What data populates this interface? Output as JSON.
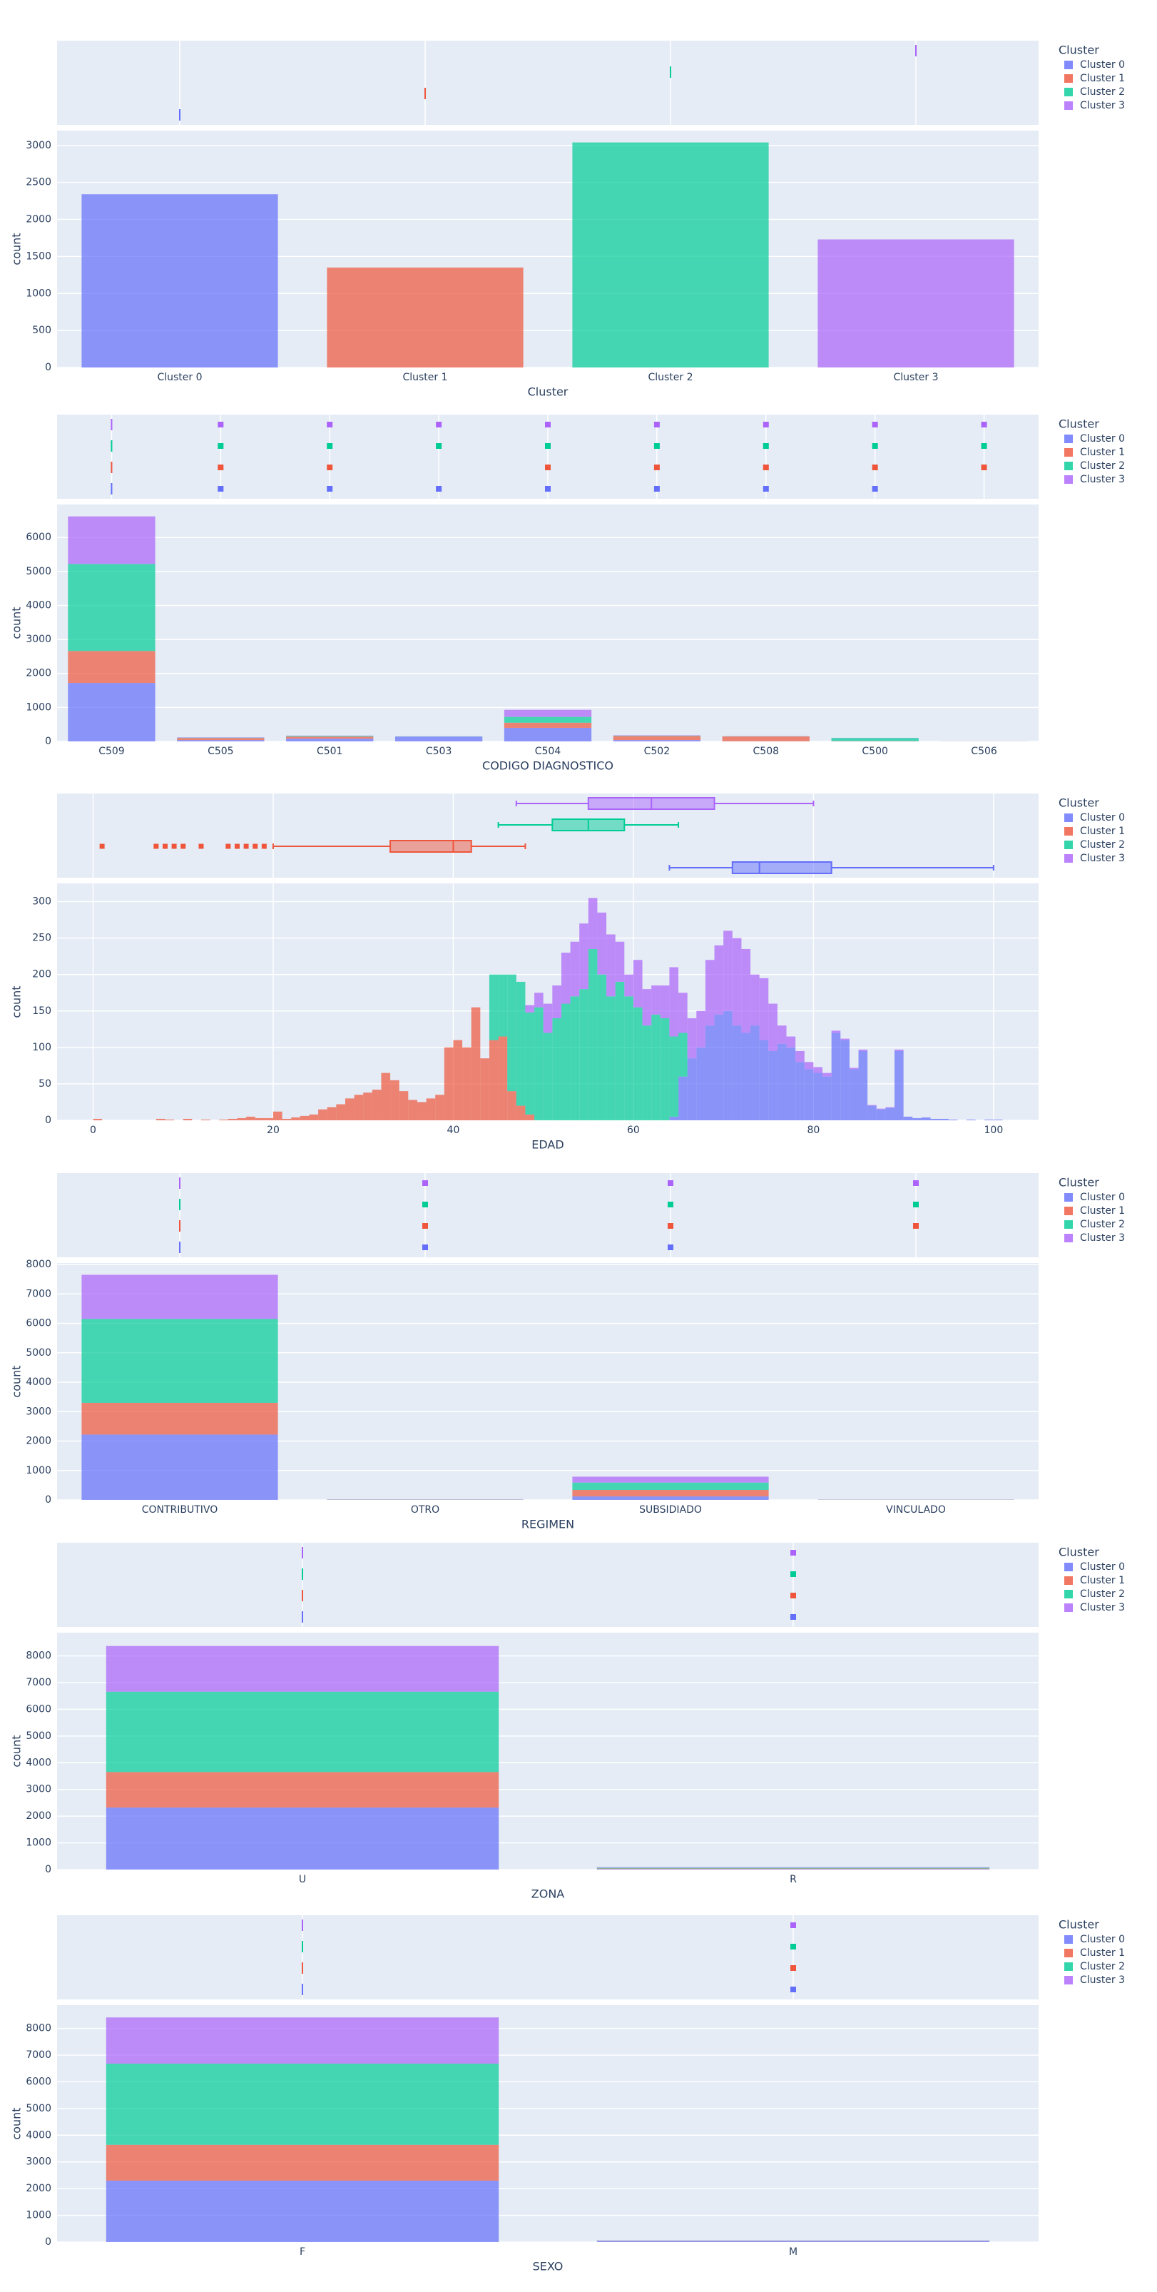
{
  "chart_data": [
    {
      "type": "bar",
      "x_label": "Cluster",
      "y_label": "count",
      "legend_title": "Cluster",
      "categories": [
        "Cluster 0",
        "Cluster 1",
        "Cluster 2",
        "Cluster 3"
      ],
      "series": [
        {
          "name": "Cluster 0",
          "color": "#636efa",
          "values": [
            2340,
            null,
            null,
            null
          ]
        },
        {
          "name": "Cluster 1",
          "color": "#EF553B",
          "values": [
            null,
            1350,
            null,
            null
          ]
        },
        {
          "name": "Cluster 2",
          "color": "#00cc96",
          "values": [
            null,
            null,
            3040,
            null
          ]
        },
        {
          "name": "Cluster 3",
          "color": "#ab63fa",
          "values": [
            null,
            null,
            null,
            1730
          ]
        }
      ],
      "ylim": [
        0,
        3200
      ],
      "yticks": [
        0,
        500,
        1000,
        1500,
        2000,
        2500,
        3000
      ]
    },
    {
      "type": "bar",
      "x_label": "CODIGO DIAGNOSTICO",
      "y_label": "count",
      "legend_title": "Cluster",
      "categories": [
        "C509",
        "C505",
        "C501",
        "C503",
        "C504",
        "C502",
        "C508",
        "C500",
        "C506"
      ],
      "series": [
        {
          "name": "Cluster 0",
          "color": "#636efa",
          "values": [
            1720,
            40,
            80,
            140,
            400,
            40,
            5,
            5,
            null
          ]
        },
        {
          "name": "Cluster 1",
          "color": "#EF553B",
          "values": [
            940,
            60,
            60,
            null,
            150,
            120,
            140,
            5,
            2
          ]
        },
        {
          "name": "Cluster 2",
          "color": "#00cc96",
          "values": [
            2560,
            10,
            20,
            5,
            170,
            10,
            5,
            90,
            2
          ]
        },
        {
          "name": "Cluster 3",
          "color": "#ab63fa",
          "values": [
            1400,
            10,
            10,
            5,
            210,
            10,
            5,
            5,
            2
          ]
        }
      ],
      "ylim": [
        0,
        6970
      ],
      "yticks": [
        0,
        1000,
        2000,
        3000,
        4000,
        5000,
        6000
      ]
    },
    {
      "type": "histogram",
      "x_label": "EDAD",
      "y_label": "count",
      "legend_title": "Cluster",
      "bins": [
        0,
        1,
        2,
        3,
        4,
        5,
        6,
        7,
        8,
        9,
        10,
        11,
        12,
        13,
        14,
        15,
        16,
        17,
        18,
        19,
        20,
        21,
        22,
        23,
        24,
        25,
        26,
        27,
        28,
        29,
        30,
        31,
        32,
        33,
        34,
        35,
        36,
        37,
        38,
        39,
        40,
        41,
        42,
        43,
        44,
        45,
        46,
        47,
        48,
        49,
        50,
        51,
        52,
        53,
        54,
        55,
        56,
        57,
        58,
        59,
        60,
        61,
        62,
        63,
        64,
        65,
        66,
        67,
        68,
        69,
        70,
        71,
        72,
        73,
        74,
        75,
        76,
        77,
        78,
        79,
        80,
        81,
        82,
        83,
        84,
        85,
        86,
        87,
        88,
        89,
        90,
        91,
        92,
        93,
        94,
        95,
        96,
        97,
        98,
        99,
        100,
        101
      ],
      "series": [
        {
          "name": "Cluster 0",
          "color": "#636efa",
          "values": [
            0,
            0,
            0,
            0,
            0,
            0,
            0,
            0,
            0,
            0,
            0,
            0,
            0,
            0,
            0,
            0,
            0,
            0,
            0,
            0,
            0,
            0,
            0,
            0,
            0,
            0,
            0,
            0,
            0,
            0,
            0,
            0,
            0,
            0,
            0,
            0,
            0,
            0,
            0,
            0,
            0,
            0,
            0,
            0,
            0,
            0,
            0,
            0,
            0,
            0,
            0,
            0,
            0,
            0,
            0,
            0,
            0,
            0,
            0,
            0,
            0,
            0,
            0,
            0,
            5,
            60,
            85,
            100,
            130,
            145,
            150,
            130,
            120,
            130,
            110,
            95,
            105,
            100,
            80,
            70,
            65,
            60,
            120,
            110,
            70,
            95,
            20,
            15,
            17,
            95,
            5,
            3,
            4,
            2,
            2,
            1,
            0,
            1,
            0,
            1,
            1
          ],
          "box": {
            "lowerfence": 64,
            "q1": 71,
            "median": 74,
            "q3": 82,
            "upperfence": 100,
            "outliers": []
          }
        },
        {
          "name": "Cluster 1",
          "color": "#EF553B",
          "values": [
            2,
            0,
            0,
            0,
            0,
            0,
            0,
            2,
            1,
            0,
            2,
            0,
            1,
            0,
            1,
            2,
            3,
            5,
            3,
            3,
            12,
            2,
            4,
            6,
            8,
            15,
            18,
            22,
            30,
            35,
            38,
            42,
            65,
            55,
            40,
            28,
            25,
            30,
            35,
            100,
            110,
            100,
            155,
            85,
            110,
            115,
            40,
            20,
            8,
            0,
            0,
            0,
            0,
            0,
            0,
            0,
            0,
            0,
            0,
            0,
            0,
            0,
            0,
            0,
            0,
            0,
            0,
            0,
            0,
            0,
            0,
            0,
            0,
            0,
            0,
            0,
            0,
            0,
            0,
            0,
            0,
            0,
            0,
            0,
            0,
            0,
            0,
            0,
            0,
            0,
            0,
            0,
            0,
            0,
            0,
            0,
            0,
            0,
            0,
            0,
            0
          ],
          "box": {
            "lowerfence": 20,
            "q1": 33,
            "median": 40,
            "q3": 42,
            "upperfence": 48,
            "outliers": [
              1,
              7,
              8,
              9,
              10,
              12,
              15,
              16,
              17,
              18,
              19
            ]
          }
        },
        {
          "name": "Cluster 2",
          "color": "#00cc96",
          "values": [
            0,
            0,
            0,
            0,
            0,
            0,
            0,
            0,
            0,
            0,
            0,
            0,
            0,
            0,
            0,
            0,
            0,
            0,
            0,
            0,
            0,
            0,
            0,
            0,
            0,
            0,
            0,
            0,
            0,
            0,
            0,
            0,
            0,
            0,
            0,
            0,
            0,
            0,
            0,
            0,
            0,
            0,
            0,
            0,
            90,
            85,
            160,
            170,
            140,
            155,
            120,
            140,
            160,
            170,
            180,
            235,
            200,
            170,
            190,
            170,
            155,
            130,
            145,
            140,
            110,
            60,
            0,
            0,
            0,
            0,
            0,
            0,
            0,
            0,
            0,
            0,
            0,
            0,
            0,
            0,
            0,
            0,
            0,
            0,
            0,
            0,
            0,
            0,
            0,
            0,
            0,
            0,
            0,
            0,
            0,
            0,
            0,
            0,
            0,
            0,
            0
          ],
          "box": {
            "lowerfence": 45,
            "q1": 51,
            "median": 55,
            "q3": 59,
            "upperfence": 65,
            "outliers": []
          }
        },
        {
          "name": "Cluster 3",
          "color": "#ab63fa",
          "values": [
            0,
            0,
            0,
            0,
            0,
            0,
            0,
            0,
            0,
            0,
            0,
            0,
            0,
            0,
            0,
            0,
            0,
            0,
            0,
            0,
            0,
            0,
            0,
            0,
            0,
            0,
            0,
            0,
            0,
            0,
            0,
            0,
            0,
            0,
            0,
            0,
            0,
            0,
            0,
            0,
            0,
            0,
            0,
            0,
            0,
            0,
            0,
            0,
            10,
            20,
            40,
            45,
            70,
            75,
            90,
            70,
            85,
            85,
            55,
            30,
            65,
            50,
            40,
            45,
            95,
            55,
            55,
            50,
            90,
            95,
            110,
            120,
            115,
            70,
            85,
            65,
            25,
            15,
            15,
            10,
            8,
            5,
            3,
            2,
            2,
            2,
            1,
            1,
            1,
            2,
            0,
            0,
            0,
            0,
            0,
            0,
            0,
            0,
            0,
            0,
            0
          ],
          "box": {
            "lowerfence": 47,
            "q1": 55,
            "median": 62,
            "q3": 69,
            "upperfence": 80,
            "outliers": []
          }
        }
      ],
      "xlim": [
        -4,
        105
      ],
      "xticks": [
        0,
        20,
        40,
        60,
        80,
        100
      ],
      "ylim": [
        0,
        325
      ],
      "yticks": [
        0,
        50,
        100,
        150,
        200,
        250,
        300
      ]
    },
    {
      "type": "bar",
      "x_label": "REGIMEN",
      "y_label": "count",
      "legend_title": "Cluster",
      "categories": [
        "CONTRIBUTIVO",
        "OTRO",
        "SUBSIDIADO",
        "VINCULADO"
      ],
      "series": [
        {
          "name": "Cluster 0",
          "color": "#636efa",
          "values": [
            2220,
            5,
            120,
            null
          ]
        },
        {
          "name": "Cluster 1",
          "color": "#EF553B",
          "values": [
            1080,
            5,
            220,
            5
          ]
        },
        {
          "name": "Cluster 2",
          "color": "#00cc96",
          "values": [
            2850,
            5,
            250,
            5
          ]
        },
        {
          "name": "Cluster 3",
          "color": "#ab63fa",
          "values": [
            1500,
            5,
            200,
            5
          ]
        }
      ],
      "ylim": [
        0,
        8050
      ],
      "yticks": [
        0,
        1000,
        2000,
        3000,
        4000,
        5000,
        6000,
        7000,
        8000
      ]
    },
    {
      "type": "bar",
      "x_label": "ZONA",
      "y_label": "count",
      "legend_title": "Cluster",
      "categories": [
        "U",
        "R"
      ],
      "series": [
        {
          "name": "Cluster 0",
          "color": "#636efa",
          "values": [
            2320,
            20
          ]
        },
        {
          "name": "Cluster 1",
          "color": "#EF553B",
          "values": [
            1330,
            20
          ]
        },
        {
          "name": "Cluster 2",
          "color": "#00cc96",
          "values": [
            3010,
            30
          ]
        },
        {
          "name": "Cluster 3",
          "color": "#ab63fa",
          "values": [
            1710,
            20
          ]
        }
      ],
      "ylim": [
        0,
        8870
      ],
      "yticks": [
        0,
        1000,
        2000,
        3000,
        4000,
        5000,
        6000,
        7000,
        8000
      ]
    },
    {
      "type": "bar",
      "x_label": "SEXO",
      "y_label": "count",
      "legend_title": "Cluster",
      "categories": [
        "F",
        "M"
      ],
      "series": [
        {
          "name": "Cluster 0",
          "color": "#636efa",
          "values": [
            2300,
            40
          ]
        },
        {
          "name": "Cluster 1",
          "color": "#EF553B",
          "values": [
            1340,
            10
          ]
        },
        {
          "name": "Cluster 2",
          "color": "#00cc96",
          "values": [
            3040,
            5
          ]
        },
        {
          "name": "Cluster 3",
          "color": "#ab63fa",
          "values": [
            1730,
            5
          ]
        }
      ],
      "ylim": [
        0,
        8870
      ],
      "yticks": [
        0,
        1000,
        2000,
        3000,
        4000,
        5000,
        6000,
        7000,
        8000
      ]
    }
  ]
}
